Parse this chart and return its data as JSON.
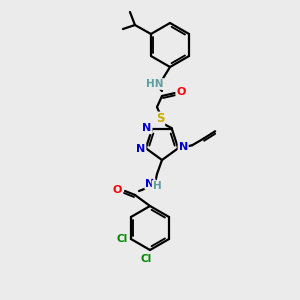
{
  "bg_color": "#ebebeb",
  "atom_colors": {
    "C": "#000000",
    "N": "#0000CC",
    "O": "#FF0000",
    "S": "#CCAA00",
    "Cl": "#008800",
    "H": "#5F9EA0"
  },
  "bond_color": "#000000",
  "bond_width": 1.6,
  "font_size": 7.5
}
